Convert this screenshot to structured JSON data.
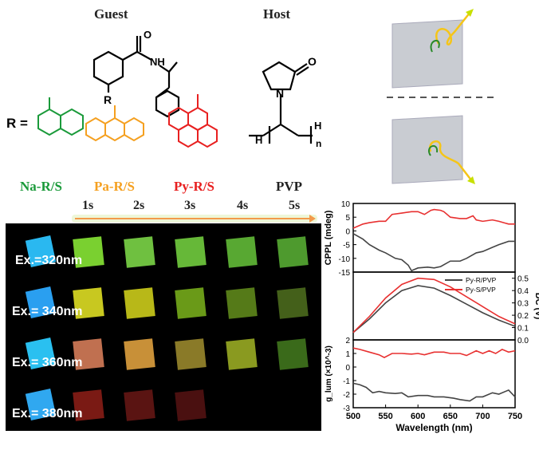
{
  "headers": {
    "guest": "Guest",
    "host": "Host"
  },
  "structure_labels": {
    "r_equals": "R =",
    "r_sub": "R",
    "nh": "NH",
    "o": "O",
    "n": "N",
    "h_left": "H",
    "h_right": "H",
    "n_sub": "n"
  },
  "compounds": [
    {
      "label": "Na-R/S",
      "color": "#1a9a3a"
    },
    {
      "label": "Pa-R/S",
      "color": "#f5a020"
    },
    {
      "label": "Py-R/S",
      "color": "#e82020"
    },
    {
      "label": "PVP",
      "color": "#222222"
    }
  ],
  "times": [
    "1s",
    "2s",
    "3s",
    "4s",
    "5s"
  ],
  "photo": {
    "rows": [
      {
        "label": "Ex.=320nm",
        "colors": [
          "#2ab8f0",
          "#7ad030",
          "#6fc040",
          "#66b838",
          "#58a832",
          "#4e9a2e"
        ]
      },
      {
        "label": "Ex.= 340nm",
        "colors": [
          "#2a9ff0",
          "#c8c820",
          "#b8b818",
          "#6a9a18",
          "#557a18",
          "#44601a"
        ]
      },
      {
        "label": "Ex.= 360nm",
        "colors": [
          "#2ac0f0",
          "#c07050",
          "#c89038",
          "#8a7a28",
          "#8a9a20",
          "#3a6a1a"
        ]
      },
      {
        "label": "Ex.= 380nm",
        "colors": [
          "#30a8f0",
          "#7a1a14",
          "#5a1412",
          "#4a1010",
          null,
          null
        ]
      }
    ]
  },
  "chart_data": {
    "type": "line",
    "xlabel": "Wavelength (nm)",
    "xlim": [
      500,
      750
    ],
    "xticks": [
      500,
      550,
      600,
      650,
      700,
      750
    ],
    "panels": [
      {
        "ylabel": "CPPL (mdeg)",
        "ylim": [
          -15,
          10
        ],
        "yticks": [
          10,
          5,
          0,
          -5,
          -10,
          -15
        ],
        "axis": "left",
        "series": [
          {
            "color": "#444444",
            "x": [
              500,
              515,
              525,
              540,
              550,
              565,
              575,
              585,
              590,
              600,
              615,
              625,
              635,
              650,
              665,
              675,
              690,
              700,
              715,
              725,
              740,
              750
            ],
            "y": [
              -1,
              -3,
              -5,
              -7,
              -8,
              -10,
              -10.5,
              -12.5,
              -14.5,
              -13.5,
              -13.2,
              -13.5,
              -13,
              -11,
              -11,
              -10,
              -8,
              -7.5,
              -6,
              -5,
              -3.8,
              -3.8
            ]
          },
          {
            "color": "#e83030",
            "x": [
              500,
              515,
              525,
              540,
              550,
              560,
              575,
              590,
              600,
              610,
              620,
              625,
              635,
              640,
              650,
              665,
              675,
              685,
              690,
              700,
              715,
              725,
              740,
              750
            ],
            "y": [
              1,
              2.5,
              3,
              3.5,
              3.5,
              6,
              6.5,
              7,
              7,
              6,
              7.5,
              7.8,
              7.5,
              7,
              5,
              4.5,
              4.5,
              5.5,
              4,
              3.5,
              4,
              3.5,
              2.5,
              2.5
            ]
          }
        ]
      },
      {
        "ylabel": "DC (V)",
        "ylim": [
          0,
          0.55
        ],
        "yticks": [
          0.0,
          0.1,
          0.2,
          0.3,
          0.4,
          0.5
        ],
        "axis": "right",
        "legend": {
          "position": "top-right",
          "entries": [
            {
              "name": "Py-R/PVP",
              "color": "#444444"
            },
            {
              "name": "Py-S/PVP",
              "color": "#e83030"
            }
          ]
        },
        "series": [
          {
            "name": "Py-R/PVP",
            "color": "#444444",
            "x": [
              500,
              525,
              550,
              575,
              600,
              625,
              650,
              675,
              700,
              725,
              750
            ],
            "y": [
              0.06,
              0.17,
              0.3,
              0.4,
              0.44,
              0.42,
              0.36,
              0.29,
              0.22,
              0.16,
              0.11
            ]
          },
          {
            "name": "Py-S/PVP",
            "color": "#e83030",
            "x": [
              500,
              525,
              550,
              575,
              600,
              625,
              650,
              675,
              700,
              725,
              750
            ],
            "y": [
              0.06,
              0.19,
              0.34,
              0.45,
              0.5,
              0.49,
              0.43,
              0.35,
              0.27,
              0.19,
              0.13
            ]
          }
        ]
      },
      {
        "ylabel": "g_lum (×10^-3)",
        "ylim": [
          -3,
          2
        ],
        "yticks": [
          2,
          1,
          0,
          -1,
          -2,
          -3
        ],
        "axis": "left",
        "series": [
          {
            "color": "#e83030",
            "x": [
              500,
              510,
              525,
              540,
              548,
              560,
              575,
              590,
              600,
              610,
              625,
              640,
              650,
              665,
              675,
              690,
              700,
              710,
              720,
              730,
              740,
              750
            ],
            "y": [
              1.4,
              1.3,
              1.1,
              0.9,
              0.7,
              1.0,
              1.0,
              0.95,
              1.0,
              0.9,
              1.1,
              1.1,
              1.0,
              1.0,
              0.85,
              1.2,
              1.0,
              1.2,
              1.0,
              1.3,
              1.1,
              1.2
            ]
          },
          {
            "color": "#444444",
            "x": [
              500,
              510,
              520,
              530,
              540,
              550,
              565,
              575,
              585,
              600,
              615,
              625,
              640,
              655,
              665,
              680,
              690,
              700,
              715,
              725,
              740,
              750
            ],
            "y": [
              -1.2,
              -1.3,
              -1.5,
              -1.9,
              -1.8,
              -1.9,
              -1.95,
              -1.9,
              -2.2,
              -2.1,
              -2.1,
              -2.2,
              -2.2,
              -2.3,
              -2.4,
              -2.5,
              -2.2,
              -2.2,
              -1.9,
              -2.0,
              -1.7,
              -2.2
            ]
          }
        ]
      }
    ]
  }
}
